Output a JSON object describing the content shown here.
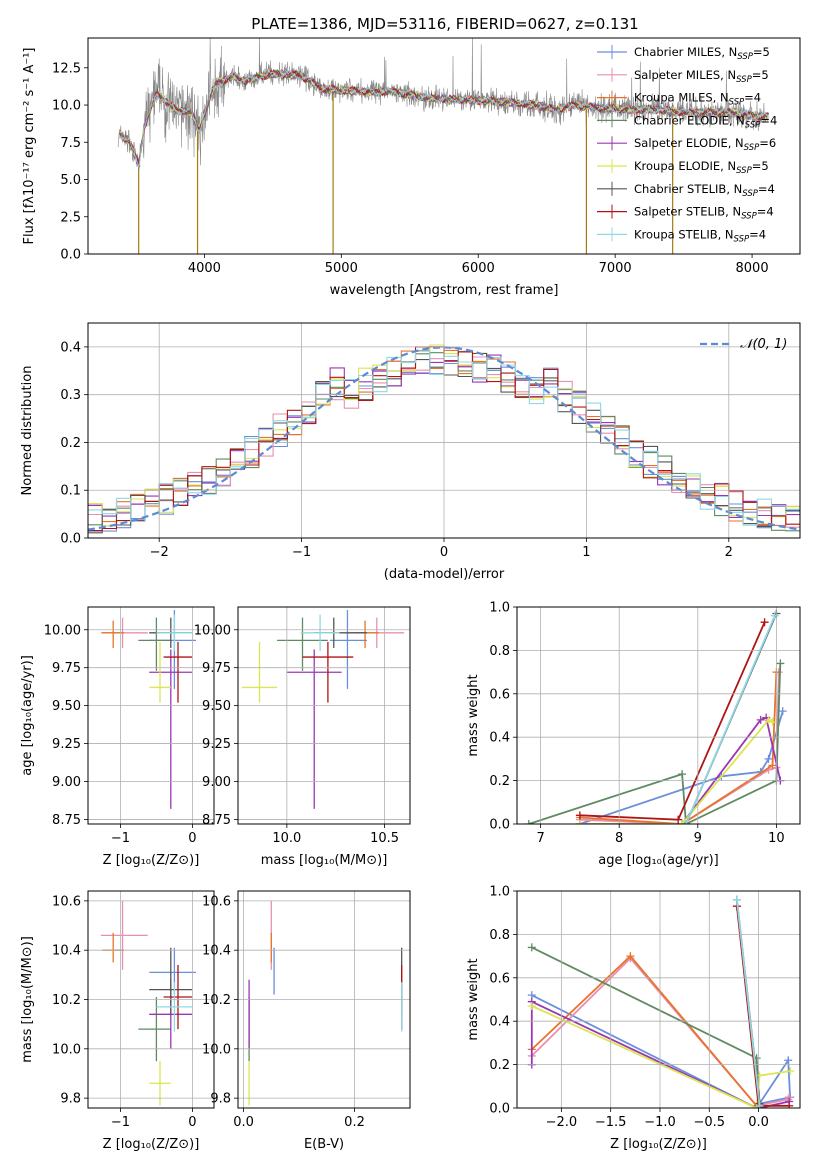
{
  "title": "PLATE=1386, MJD=53116, FIBERID=0627, z=0.131",
  "colors": {
    "chabrier_miles": "#6a8fdc",
    "salpeter_miles": "#e98fb2",
    "kroupa_miles": "#e8732a",
    "chabrier_elodie": "#5f8a62",
    "salpeter_elodie": "#9b37b5",
    "kroupa_elodie": "#dbe650",
    "chabrier_stelib": "#555555",
    "salpeter_stelib": "#b01414",
    "kroupa_stelib": "#8fd8e4",
    "data": "#888888",
    "gauss": "#5b8ad6",
    "grid": "#b0b0b0"
  },
  "chart_data": [
    {
      "id": "spectrum",
      "type": "line",
      "title": "PLATE=1386, MJD=53116, FIBERID=0627, z=0.131",
      "xlabel": "wavelength [Angstrom, rest frame]",
      "ylabel": "Flux [fλ10⁻¹⁷ erg cm⁻² s⁻¹ A⁻¹]",
      "xlim": [
        3150,
        8350
      ],
      "ylim": [
        0,
        14.5
      ],
      "xticks": [
        "4000",
        "5000",
        "6000",
        "7000",
        "8000"
      ],
      "yticks": [
        "0.0",
        "2.5",
        "5.0",
        "7.5",
        "10.0",
        "12.5"
      ],
      "grid": false,
      "legend": "upper right",
      "legend_entries": [
        {
          "name": "Chabrier MILES, N",
          "sub": "SSP",
          "tail": "=5"
        },
        {
          "name": "Salpeter MILES, N",
          "sub": "SSP",
          "tail": "=5"
        },
        {
          "name": "Kroupa MILES, N",
          "sub": "SSP",
          "tail": "=4"
        },
        {
          "name": "Chabrier ELODIE, N",
          "sub": "SSP",
          "tail": "=4"
        },
        {
          "name": "Salpeter ELODIE, N",
          "sub": "SSP",
          "tail": "=6"
        },
        {
          "name": "Kroupa ELODIE, N",
          "sub": "SSP",
          "tail": "=5"
        },
        {
          "name": "Chabrier STELIB, N",
          "sub": "SSP",
          "tail": "=4"
        },
        {
          "name": "Salpeter STELIB, N",
          "sub": "SSP",
          "tail": "=4"
        },
        {
          "name": "Kroupa STELIB, N",
          "sub": "SSP",
          "tail": "=4"
        }
      ],
      "model_continuum": [
        [
          3370,
          8.1
        ],
        [
          3450,
          7.6
        ],
        [
          3520,
          6.0
        ],
        [
          3560,
          8.5
        ],
        [
          3650,
          10.8
        ],
        [
          3800,
          9.6
        ],
        [
          3900,
          9.6
        ],
        [
          3960,
          8.3
        ],
        [
          4050,
          10.8
        ],
        [
          4100,
          11.5
        ],
        [
          4200,
          11.9
        ],
        [
          4300,
          11.6
        ],
        [
          4400,
          11.9
        ],
        [
          4500,
          12.1
        ],
        [
          4700,
          12.0
        ],
        [
          4860,
          11.1
        ],
        [
          5000,
          11.0
        ],
        [
          5200,
          10.9
        ],
        [
          5400,
          10.9
        ],
        [
          5600,
          10.5
        ],
        [
          5800,
          10.4
        ],
        [
          6000,
          10.3
        ],
        [
          6200,
          10.2
        ],
        [
          6400,
          10.0
        ],
        [
          6563,
          9.7
        ],
        [
          6700,
          10.0
        ],
        [
          6900,
          9.8
        ],
        [
          7100,
          9.7
        ],
        [
          7300,
          9.7
        ],
        [
          7500,
          9.5
        ],
        [
          7800,
          9.5
        ],
        [
          8100,
          9.2
        ]
      ],
      "data_spikes": [
        [
          3520,
          0
        ],
        [
          3950,
          0
        ],
        [
          4940,
          0
        ],
        [
          6790,
          0
        ],
        [
          7420,
          0
        ]
      ]
    },
    {
      "id": "residual_hist",
      "type": "bar",
      "xlabel": "(data-model)/error",
      "ylabel": "Normed distribution",
      "xlim": [
        -2.5,
        2.5
      ],
      "ylim": [
        0,
        0.45
      ],
      "xticks": [
        "−2",
        "−1",
        "0",
        "1",
        "2"
      ],
      "yticks": [
        "0.0",
        "0.1",
        "0.2",
        "0.3",
        "0.4"
      ],
      "grid": true,
      "legend": "upper right",
      "gauss_label": "𝒩(0, 1)",
      "bin_width": 0.1
    },
    {
      "id": "age_vs_Z",
      "type": "scatter",
      "xlabel": "Z [log₁₀(Z/Z⊙)]",
      "ylabel": "age [log₁₀(age/yr)]",
      "xlim": [
        -1.45,
        0.3
      ],
      "ylim": [
        8.72,
        10.15
      ],
      "xticks": [
        "−1",
        "0"
      ],
      "yticks": [
        "8.75",
        "9.00",
        "9.25",
        "9.50",
        "9.75",
        "10.00"
      ],
      "grid": true
    },
    {
      "id": "age_vs_mass",
      "type": "scatter",
      "xlabel": "mass [log₁₀(M/M⊙)]",
      "xlim": [
        9.75,
        10.63
      ],
      "ylim": [
        8.72,
        10.15
      ],
      "xticks": [
        "10.0",
        "10.5"
      ],
      "yticks": [
        "8.75",
        "9.00",
        "9.25",
        "9.50",
        "9.75",
        "10.00"
      ],
      "grid": true
    },
    {
      "id": "mass_weight_vs_age",
      "type": "line",
      "xlabel": "age  [log₁₀(age/yr)]",
      "ylabel": "mass weight",
      "xlim": [
        6.7,
        10.3
      ],
      "ylim": [
        0,
        1.0
      ],
      "xticks": [
        "7",
        "8",
        "9",
        "10"
      ],
      "yticks": [
        "0.0",
        "0.2",
        "0.4",
        "0.6",
        "0.8",
        "1.0"
      ],
      "grid": true
    },
    {
      "id": "mass_vs_Z",
      "type": "scatter",
      "xlabel": "Z [log₁₀(Z/Z⊙)]",
      "ylabel": "mass [log₁₀(M/M⊙)]",
      "xlim": [
        -1.45,
        0.3
      ],
      "ylim": [
        9.76,
        10.64
      ],
      "xticks": [
        "−1",
        "0"
      ],
      "yticks": [
        "9.8",
        "10.0",
        "10.2",
        "10.4",
        "10.6"
      ],
      "grid": true
    },
    {
      "id": "mass_vs_ebv",
      "type": "scatter",
      "xlabel": "E(B-V)",
      "xlim": [
        -0.01,
        0.3
      ],
      "ylim": [
        9.76,
        10.64
      ],
      "xticks": [
        "0.0",
        "0.2"
      ],
      "yticks": [
        "9.8",
        "10.0",
        "10.2",
        "10.4",
        "10.6"
      ],
      "grid": true
    },
    {
      "id": "mass_weight_vs_Z",
      "type": "line",
      "xlabel": "Z [log₁₀(Z/Z⊙)]",
      "ylabel": "mass weight",
      "xlim": [
        -2.45,
        0.42
      ],
      "ylim": [
        0,
        1.0
      ],
      "xticks": [
        "−2.0",
        "−1.5",
        "−1.0",
        "−0.5",
        "0.0"
      ],
      "yticks": [
        "0.0",
        "0.2",
        "0.4",
        "0.6",
        "0.8",
        "1.0"
      ],
      "grid": true
    }
  ],
  "models": [
    {
      "key": "chabrier_miles",
      "Z": -0.25,
      "Z_err": [
        0.35,
        0.3
      ],
      "age": 9.93,
      "age_err": [
        0.32,
        0.2
      ],
      "mass": 10.31,
      "mass_err": [
        0.09,
        0.1
      ],
      "ebv": 0.055,
      "ages": [
        7.5,
        9.3,
        9.8,
        9.9,
        10.08
      ],
      "weights": [
        0.0,
        0.22,
        0.24,
        0.3,
        0.52
      ],
      "Zs": [
        -2.3,
        -0.02,
        0.3,
        0.32,
        0.01
      ],
      "Zw": [
        0.52,
        0.0,
        0.22,
        0.05,
        0.02
      ]
    },
    {
      "key": "salpeter_miles",
      "Z": -0.97,
      "Z_err": [
        0.3,
        0.35
      ],
      "age": 9.98,
      "age_err": [
        0.1,
        0.1
      ],
      "mass": 10.46,
      "mass_err": [
        0.14,
        0.14
      ],
      "ebv": 0.05,
      "ages": [
        7.5,
        8.8,
        9.9,
        10.0,
        10.03
      ],
      "weights": [
        0.02,
        0.0,
        0.25,
        0.26,
        0.7
      ],
      "Zs": [
        -2.3,
        -1.3,
        -0.02,
        0.3,
        0.31
      ],
      "Zw": [
        0.24,
        0.69,
        0.01,
        0.04,
        0.05
      ]
    },
    {
      "key": "kroupa_miles",
      "Z": -1.1,
      "Z_err": [
        0.15,
        0.15
      ],
      "age": 9.98,
      "age_err": [
        0.1,
        0.08
      ],
      "mass": 10.4,
      "mass_err": [
        0.05,
        0.07
      ],
      "ebv": 0.05,
      "ages": [
        7.5,
        8.8,
        9.95,
        10.0
      ],
      "weights": [
        0.03,
        0.0,
        0.27,
        0.7
      ],
      "Zs": [
        -2.3,
        -1.3,
        -0.02,
        0.01
      ],
      "Zw": [
        0.27,
        0.7,
        0.01,
        0.0
      ]
    },
    {
      "key": "chabrier_elodie",
      "Z": -0.5,
      "Z_err": [
        0.25,
        0.2
      ],
      "age": 9.93,
      "age_err": [
        0.2,
        0.15
      ],
      "mass": 10.08,
      "mass_err": [
        0.13,
        0.13
      ],
      "ebv": 0.01,
      "ages": [
        6.85,
        8.8,
        8.85,
        10.0,
        10.05
      ],
      "weights": [
        0.0,
        0.23,
        0.0,
        0.2,
        0.74
      ],
      "Zs": [
        -2.3,
        -0.02,
        0.01
      ],
      "Zw": [
        0.74,
        0.23,
        0.02
      ]
    },
    {
      "key": "salpeter_elodie",
      "Z": -0.3,
      "Z_err": [
        0.3,
        0.3
      ],
      "age": 9.72,
      "age_err": [
        0.9,
        0.15
      ],
      "mass": 10.14,
      "mass_err": [
        0.14,
        0.14
      ],
      "ebv": 0.01,
      "ages": [
        7.5,
        8.8,
        9.8,
        9.87,
        10.05
      ],
      "weights": [
        0.0,
        0.0,
        0.48,
        0.49,
        0.2
      ],
      "Zs": [
        -2.3,
        -2.3,
        -0.02,
        0.01,
        0.31
      ],
      "Zw": [
        0.2,
        0.49,
        0.0,
        0.0,
        0.03
      ]
    },
    {
      "key": "kroupa_elodie",
      "Z": -0.45,
      "Z_err": [
        0.15,
        0.15
      ],
      "age": 9.62,
      "age_err": [
        0.1,
        0.3
      ],
      "mass": 9.86,
      "mass_err": [
        0.09,
        0.09
      ],
      "ebv": 0.01,
      "ages": [
        7.5,
        8.8,
        9.9,
        9.95
      ],
      "weights": [
        0.0,
        0.0,
        0.48,
        0.47
      ],
      "Zs": [
        -2.3,
        -0.02,
        0.01,
        0.32
      ],
      "Zw": [
        0.47,
        0.0,
        0.15,
        0.17
      ]
    },
    {
      "key": "chabrier_stelib",
      "Z": -0.3,
      "Z_err": [
        0.3,
        0.3
      ],
      "age": 9.98,
      "age_err": [
        0.1,
        0.1
      ],
      "mass": 10.24,
      "mass_err": [
        0.1,
        0.17
      ],
      "ebv": 0.285,
      "ages": [
        8.85,
        10.0
      ],
      "weights": [
        0.0,
        0.97
      ],
      "Zs": [
        -0.22,
        0.01
      ],
      "Zw": [
        0.96,
        0.02
      ]
    },
    {
      "key": "salpeter_stelib",
      "Z": -0.2,
      "Z_err": [
        0.2,
        0.2
      ],
      "age": 9.82,
      "age_err": [
        0.3,
        0.1
      ],
      "mass": 10.21,
      "mass_err": [
        0.13,
        0.13
      ],
      "ebv": 0.285,
      "ages": [
        7.5,
        8.75,
        9.85
      ],
      "weights": [
        0.04,
        0.02,
        0.93
      ],
      "Zs": [
        -0.22,
        0.0,
        0.31
      ],
      "Zw": [
        0.93,
        0.01,
        0.01
      ]
    },
    {
      "key": "kroupa_stelib",
      "Z": -0.25,
      "Z_err": [
        0.25,
        0.25
      ],
      "age": 9.98,
      "age_err": [
        0.12,
        0.12
      ],
      "mass": 10.17,
      "mass_err": [
        0.1,
        0.1
      ],
      "ebv": 0.285,
      "ages": [
        8.85,
        9.98
      ],
      "weights": [
        0.0,
        0.96
      ],
      "Zs": [
        -0.22,
        0.01
      ],
      "Zw": [
        0.96,
        0.01
      ]
    }
  ]
}
